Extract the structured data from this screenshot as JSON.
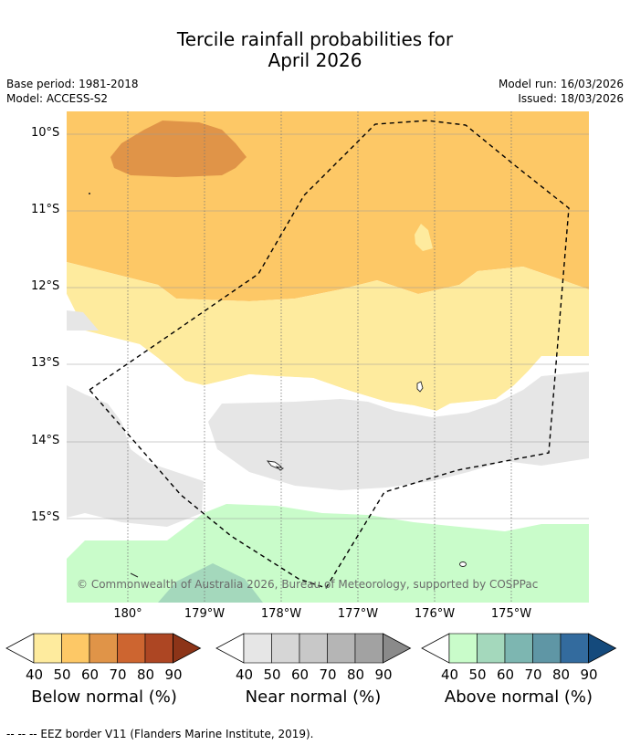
{
  "title": {
    "line1": "Tercile rainfall probabilities for",
    "line2": "April 2026"
  },
  "header": {
    "base_period": "Base period: 1981-2018",
    "model": "Model: ACCESS-S2",
    "model_run": "Model run: 16/03/2026",
    "issued": "Issued: 18/03/2026"
  },
  "map": {
    "lat_labels": [
      "10°S",
      "11°S",
      "12°S",
      "13°S",
      "14°S",
      "15°S"
    ],
    "lon_labels": [
      "180°",
      "179°W",
      "178°W",
      "177°W",
      "176°W",
      "175°W"
    ],
    "copyright": "© Commonwealth of Australia 2026, Bureau of Meteorology, supported by COSPPac"
  },
  "legend": {
    "ticks": [
      "40",
      "50",
      "60",
      "70",
      "80",
      "90"
    ],
    "below": {
      "label": "Below normal (%)",
      "colors": [
        "#feeb9e",
        "#fdc866",
        "#e09448",
        "#cd6530",
        "#ad4623",
        "#8c3418"
      ]
    },
    "near": {
      "label": "Near normal (%)",
      "colors": [
        "#e6e6e6",
        "#d6d6d6",
        "#c8c8c8",
        "#b5b5b5",
        "#a2a2a2",
        "#8a8a8a"
      ]
    },
    "above": {
      "label": "Above normal (%)",
      "colors": [
        "#c9fcca",
        "#a4d8bc",
        "#7db6b1",
        "#5f96a5",
        "#336b9e",
        "#144a7c"
      ]
    }
  },
  "footnote": "--  --  -- EEZ border V11 (Flanders Marine Institute, 2019)."
}
